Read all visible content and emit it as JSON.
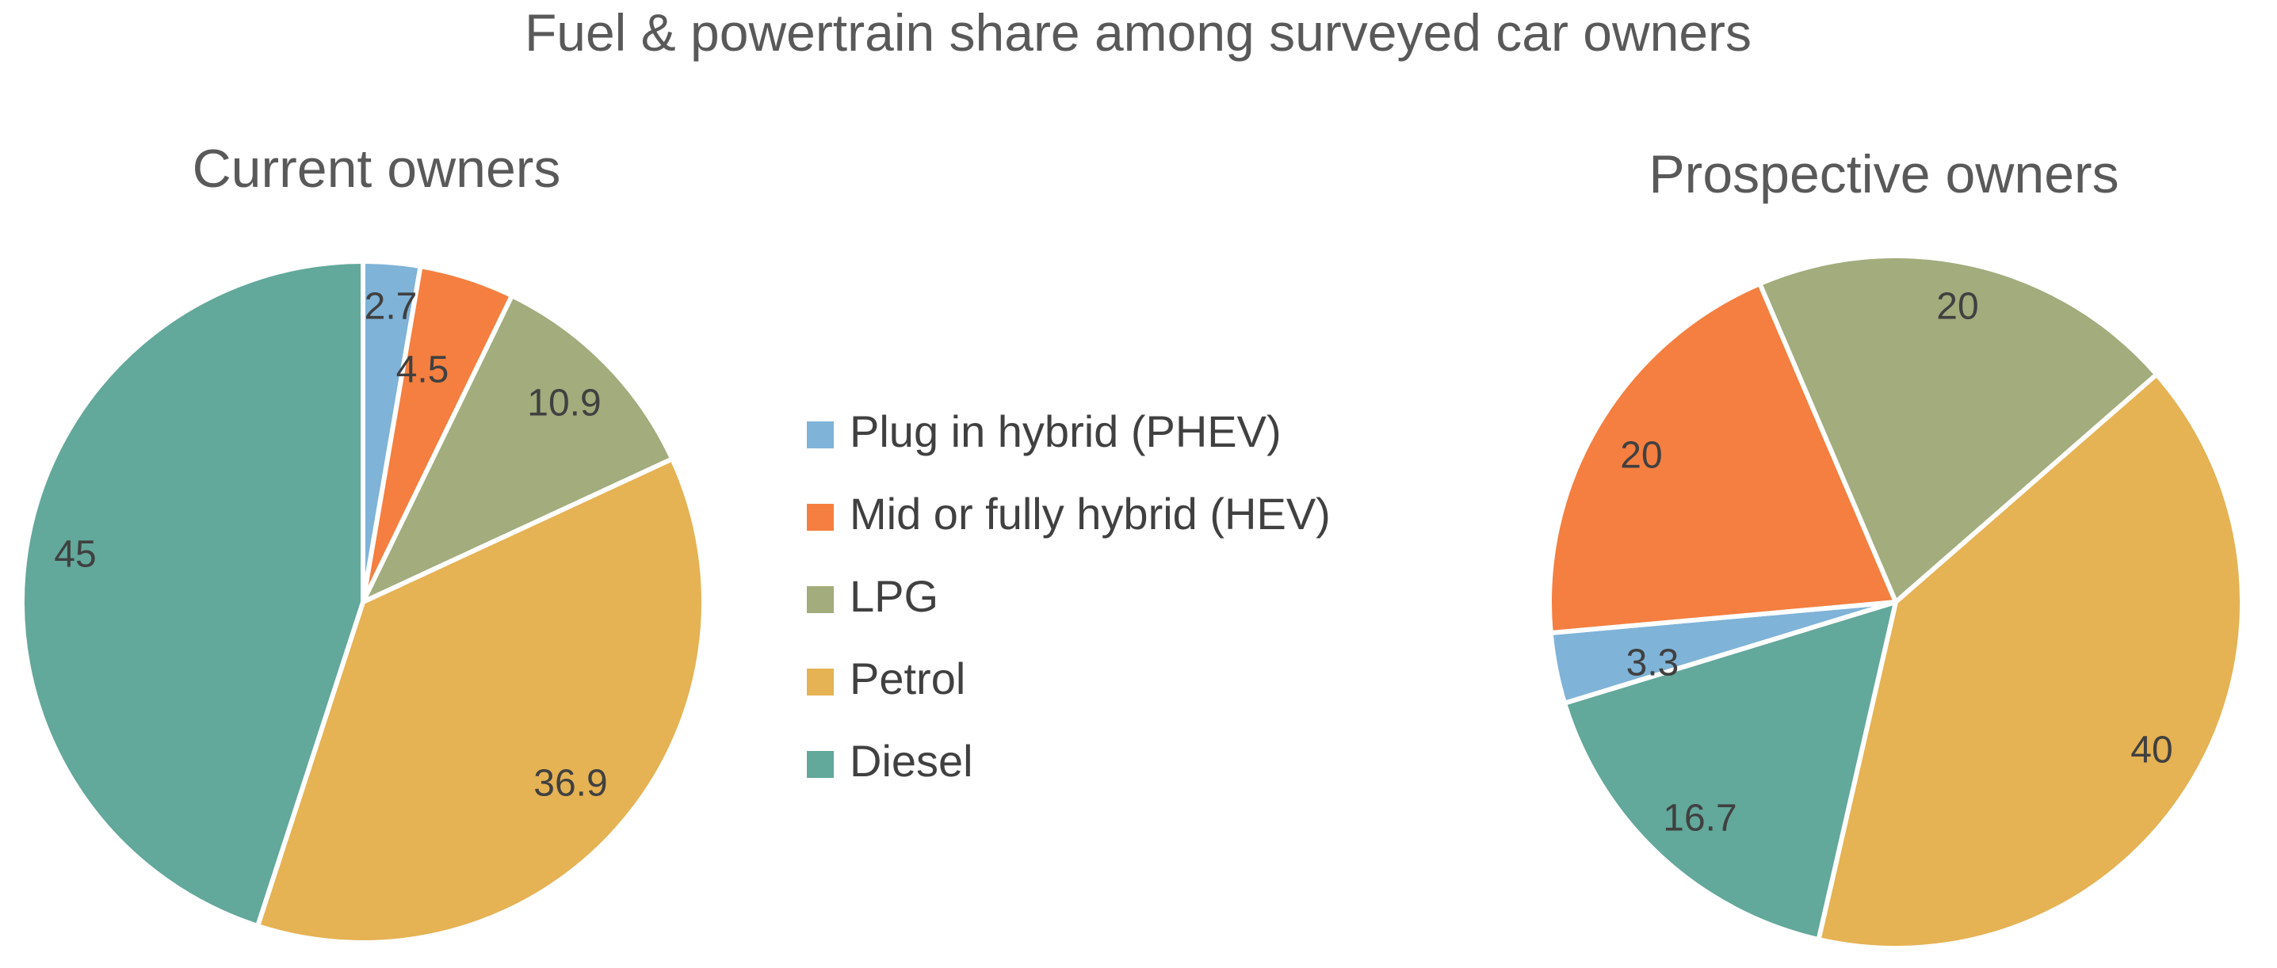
{
  "chart_data": [
    {
      "type": "pie",
      "title": "Fuel & powertrain share among surveyed car owners",
      "subtitle": "Current owners",
      "categories": [
        "Plug in hybrid (PHEV)",
        "Mid or fully hybrid (HEV)",
        "LPG",
        "Petrol",
        "Diesel"
      ],
      "values": [
        2.7,
        4.5,
        10.9,
        36.9,
        45
      ],
      "value_labels": [
        "2.7",
        "4.5",
        "10.9",
        "36.9",
        "45"
      ],
      "start_angle_deg": 0,
      "direction": "clockwise"
    },
    {
      "type": "pie",
      "subtitle": "Prospective owners",
      "categories": [
        "Plug in hybrid (PHEV)",
        "Mid or fully hybrid (HEV)",
        "LPG",
        "Petrol",
        "Diesel"
      ],
      "values": [
        3.3,
        20,
        20,
        40,
        16.7
      ],
      "value_labels": [
        "3.3",
        "20",
        "20",
        "40",
        "16.7"
      ],
      "start_angle_deg": 253,
      "direction": "clockwise"
    }
  ],
  "legend": {
    "position": "center",
    "items": [
      {
        "label": "Plug in hybrid (PHEV)",
        "color": "#7FB3D8"
      },
      {
        "label": "Mid or fully hybrid (HEV)",
        "color": "#F47F40"
      },
      {
        "label": "LPG",
        "color": "#A2AC7C"
      },
      {
        "label": "Petrol",
        "color": "#E5B254"
      },
      {
        "label": "Diesel",
        "color": "#62A89B"
      }
    ]
  }
}
